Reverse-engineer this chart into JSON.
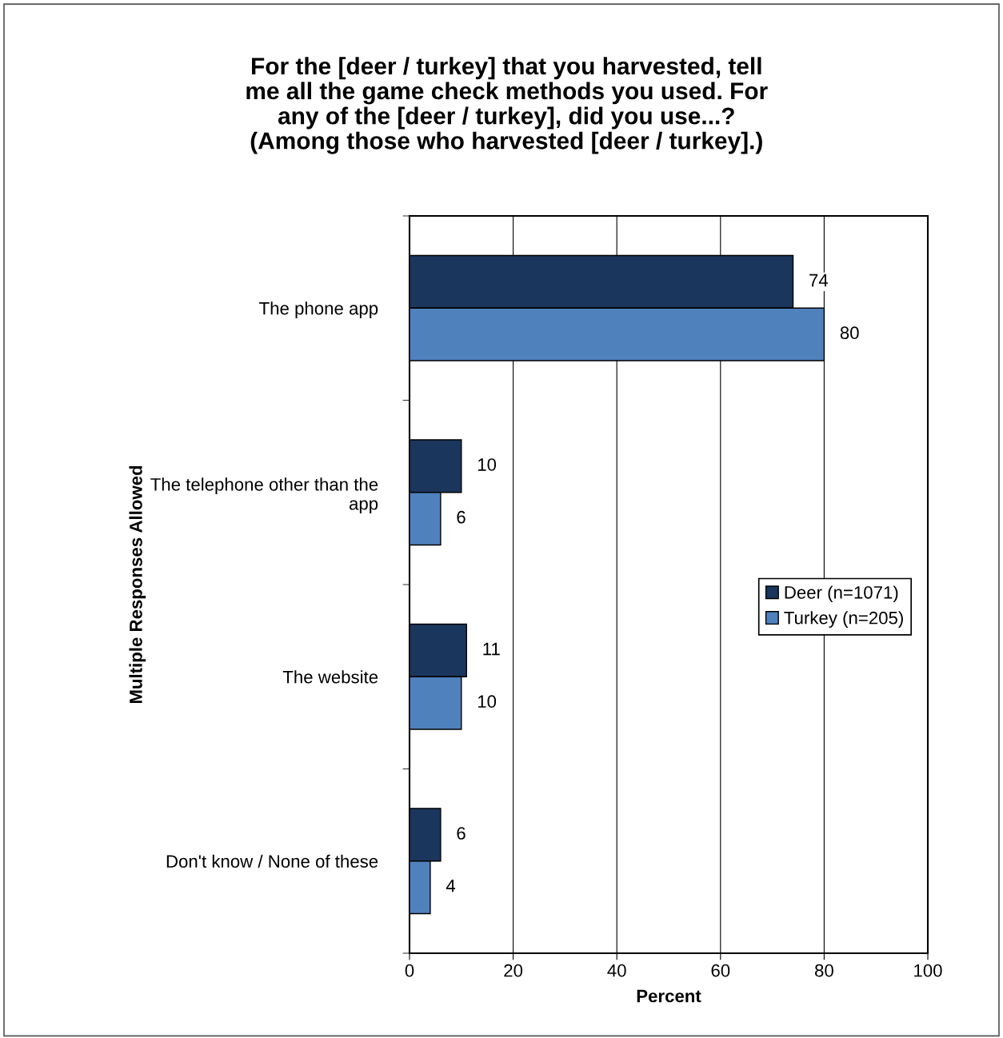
{
  "chart_data": {
    "type": "bar",
    "orientation": "horizontal",
    "title": "For the [deer / turkey] that you harvested, tell\nme all the game check methods you used. For\nany of the [deer / turkey], did you use...?\n(Among those who harvested [deer / turkey].)",
    "xlabel": "Percent",
    "ylabel": "Multiple Responses Allowed",
    "categories": [
      "The phone app",
      "The telephone other than the\napp",
      "The website",
      "Don't know / None of these"
    ],
    "series": [
      {
        "name": "Deer (n=1071)",
        "color": "#1b365d",
        "values": [
          74,
          10,
          11,
          6
        ]
      },
      {
        "name": "Turkey (n=205)",
        "color": "#4f81bd",
        "values": [
          80,
          6,
          10,
          4
        ]
      }
    ],
    "xlim": [
      0,
      100
    ],
    "xticks": [
      0,
      20,
      40,
      60,
      80,
      100
    ],
    "grid": "x",
    "legend": "right",
    "data_labels": true
  }
}
